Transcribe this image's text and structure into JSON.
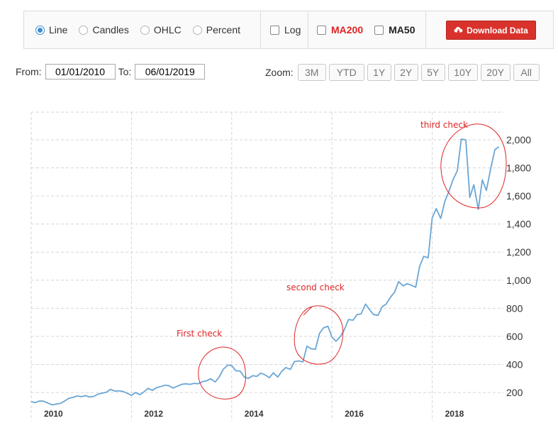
{
  "toolbar": {
    "radios": [
      {
        "label": "Line",
        "checked": true
      },
      {
        "label": "Candles",
        "checked": false
      },
      {
        "label": "OHLC",
        "checked": false
      },
      {
        "label": "Percent",
        "checked": false
      }
    ],
    "log_label": "Log",
    "ma200_label": "MA200",
    "ma50_label": "MA50",
    "download_label": "Download Data",
    "download_icon": "cloud-download-icon",
    "accent_color": "#3c8dd0",
    "download_color": "#d9322c",
    "ma200_color": "#e02424"
  },
  "range": {
    "from_label": "From:",
    "from_value": "01/01/2010",
    "to_label": "To:",
    "to_value": "06/01/2019"
  },
  "zoom": {
    "label": "Zoom:",
    "buttons": [
      "3M",
      "YTD",
      "1Y",
      "2Y",
      "5Y",
      "10Y",
      "20Y",
      "All"
    ]
  },
  "annotations": [
    {
      "text": "First check"
    },
    {
      "text": "second check"
    },
    {
      "text": "third check"
    }
  ],
  "chart_data": {
    "type": "line",
    "title": "",
    "xlabel": "",
    "ylabel": "",
    "line_color": "#6aa6d6",
    "grid": true,
    "xlim": [
      2010.0,
      2019.42
    ],
    "ylim": [
      200,
      2000
    ],
    "y_ticks": [
      200,
      400,
      600,
      800,
      1000,
      1200,
      1400,
      1600,
      1800,
      2000
    ],
    "y_tick_labels": [
      "200",
      "400",
      "600",
      "800",
      "1,000",
      "1,200",
      "1,400",
      "1,600",
      "1,800",
      "2,000"
    ],
    "x_ticks": [
      2010,
      2012,
      2014,
      2016,
      2018
    ],
    "x_tick_labels": [
      "2010",
      "2012",
      "2014",
      "2016",
      "2018"
    ],
    "series": [
      {
        "x": [
          2010.0,
          2010.08,
          2010.17,
          2010.25,
          2010.33,
          2010.42,
          2010.5,
          2010.58,
          2010.67,
          2010.75,
          2010.83,
          2010.92,
          2011.0,
          2011.08,
          2011.17,
          2011.25,
          2011.33,
          2011.42,
          2011.5,
          2011.58,
          2011.67,
          2011.75,
          2011.83,
          2011.92,
          2012.0,
          2012.08,
          2012.17,
          2012.25,
          2012.33,
          2012.42,
          2012.5,
          2012.58,
          2012.67,
          2012.75,
          2012.83,
          2012.92,
          2013.0,
          2013.08,
          2013.17,
          2013.25,
          2013.33,
          2013.42,
          2013.5,
          2013.58,
          2013.67,
          2013.75,
          2013.83,
          2013.92,
          2014.0,
          2014.08,
          2014.17,
          2014.25,
          2014.33,
          2014.42,
          2014.5,
          2014.58,
          2014.67,
          2014.75,
          2014.83,
          2014.92,
          2015.0,
          2015.08,
          2015.17,
          2015.25,
          2015.33,
          2015.42,
          2015.5,
          2015.58,
          2015.67,
          2015.75,
          2015.83,
          2015.92,
          2016.0,
          2016.08,
          2016.17,
          2016.25,
          2016.33,
          2016.42,
          2016.5,
          2016.58,
          2016.67,
          2016.75,
          2016.83,
          2016.92,
          2017.0,
          2017.08,
          2017.17,
          2017.25,
          2017.33,
          2017.42,
          2017.5,
          2017.58,
          2017.67,
          2017.75,
          2017.83,
          2017.92,
          2018.0,
          2018.08,
          2018.17,
          2018.25,
          2018.33,
          2018.42,
          2018.5,
          2018.58,
          2018.67,
          2018.75,
          2018.83,
          2018.92,
          2019.0,
          2019.08,
          2019.17,
          2019.25,
          2019.33
        ],
        "y": [
          135,
          128,
          140,
          138,
          125,
          112,
          118,
          122,
          140,
          158,
          165,
          175,
          170,
          178,
          168,
          172,
          188,
          196,
          202,
          222,
          210,
          212,
          208,
          194,
          180,
          200,
          185,
          205,
          230,
          215,
          235,
          242,
          252,
          248,
          232,
          245,
          258,
          262,
          258,
          265,
          262,
          278,
          284,
          298,
          275,
          310,
          365,
          395,
          392,
          355,
          352,
          310,
          300,
          320,
          315,
          338,
          325,
          305,
          340,
          310,
          352,
          378,
          365,
          420,
          425,
          418,
          530,
          512,
          508,
          620,
          660,
          672,
          595,
          565,
          600,
          650,
          720,
          715,
          755,
          760,
          830,
          790,
          755,
          750,
          810,
          830,
          880,
          915,
          990,
          960,
          975,
          965,
          950,
          1100,
          1170,
          1160,
          1445,
          1510,
          1440,
          1560,
          1630,
          1720,
          1780,
          2005,
          2000,
          1590,
          1680,
          1505,
          1715,
          1640,
          1800,
          1930,
          1950
        ]
      }
    ]
  }
}
